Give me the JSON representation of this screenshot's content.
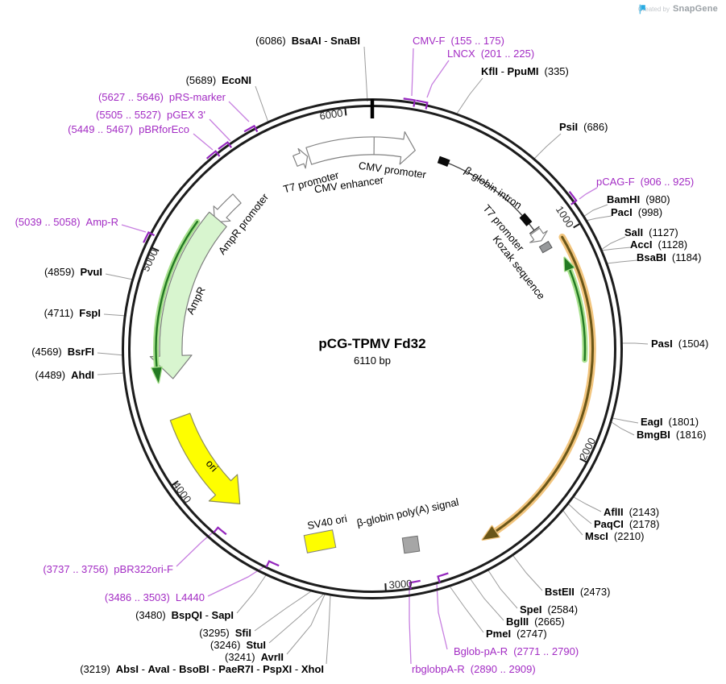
{
  "credit": {
    "prefix": "Created by",
    "brand": "SnapGene"
  },
  "plasmid": {
    "name": "pCG-TPMV Fd32",
    "size": "6110 bp",
    "length_bp": 6110
  },
  "separator": " - ",
  "ticks": [
    "1000",
    "2000",
    "3000",
    "4000",
    "5000",
    "6000"
  ],
  "colors": {
    "primer_text": "#a32cc4",
    "primer_leader": "#c77fe0",
    "primer_mark": "#9426bd",
    "ampr_fill": "#d8f5cf",
    "ori_fill": "#fefe00",
    "gene_halo": "#f2c57e",
    "gene_core": "#6a5618",
    "orf_halo": "#a8e08e",
    "orf_core": "#237a23",
    "polya_fill": "#a6a6a6",
    "kozak_fill": "#97999b",
    "snapgene_blue": "#29abe2"
  },
  "features": {
    "t7_promoter_a": {
      "label": "T7 promoter"
    },
    "cmv_enhancer": {
      "label": "CMV enhancer"
    },
    "cmv_promoter": {
      "label": "CMV promoter"
    },
    "bglobin_intron": {
      "label": "β-globin intron"
    },
    "t7_promoter_b": {
      "label": "T7 promoter"
    },
    "kozak": {
      "label": "Kozak sequence"
    },
    "gene_arc": {
      "label": ""
    },
    "ampr_promoter": {
      "label": "AmpR promoter"
    },
    "ampr": {
      "label": "AmpR"
    },
    "ori": {
      "label": "ori"
    },
    "sv40_ori": {
      "label": "SV40 ori"
    },
    "bglobin_polya": {
      "label": "β-globin poly(A) signal"
    }
  },
  "sites": [
    {
      "names": [
        "BsaAI",
        "SnaBI"
      ],
      "pos": "(6086)",
      "primer": false
    },
    {
      "names": [
        "EcoNI"
      ],
      "pos": "(5689)",
      "primer": false
    },
    {
      "names": [
        "pRS-marker"
      ],
      "pos": "(5627 .. 5646)",
      "primer": true
    },
    {
      "names": [
        "pGEX 3'"
      ],
      "pos": "(5505 .. 5527)",
      "primer": true
    },
    {
      "names": [
        "pBRforEco"
      ],
      "pos": "(5449 .. 5467)",
      "primer": true
    },
    {
      "names": [
        "Amp-R"
      ],
      "pos": "(5039 .. 5058)",
      "primer": true
    },
    {
      "names": [
        "PvuI"
      ],
      "pos": "(4859)",
      "primer": false
    },
    {
      "names": [
        "FspI"
      ],
      "pos": "(4711)",
      "primer": false
    },
    {
      "names": [
        "BsrFI"
      ],
      "pos": "(4569)",
      "primer": false
    },
    {
      "names": [
        "AhdI"
      ],
      "pos": "(4489)",
      "primer": false
    },
    {
      "names": [
        "CMV-F"
      ],
      "pos": "(155 .. 175)",
      "primer": true
    },
    {
      "names": [
        "LNCX"
      ],
      "pos": "(201 .. 225)",
      "primer": true
    },
    {
      "names": [
        "KflI",
        "PpuMI"
      ],
      "pos": "(335)",
      "primer": false
    },
    {
      "names": [
        "PsiI"
      ],
      "pos": "(686)",
      "primer": false
    },
    {
      "names": [
        "pCAG-F"
      ],
      "pos": "(906 .. 925)",
      "primer": true
    },
    {
      "names": [
        "BamHI"
      ],
      "pos": "(980)",
      "primer": false
    },
    {
      "names": [
        "PacI"
      ],
      "pos": "(998)",
      "primer": false
    },
    {
      "names": [
        "SalI"
      ],
      "pos": "(1127)",
      "primer": false
    },
    {
      "names": [
        "AccI"
      ],
      "pos": "(1128)",
      "primer": false
    },
    {
      "names": [
        "BsaBI"
      ],
      "pos": "(1184)",
      "primer": false
    },
    {
      "names": [
        "PasI"
      ],
      "pos": "(1504)",
      "primer": false
    },
    {
      "names": [
        "EagI"
      ],
      "pos": "(1801)",
      "primer": false
    },
    {
      "names": [
        "BmgBI"
      ],
      "pos": "(1816)",
      "primer": false
    },
    {
      "names": [
        "AflII"
      ],
      "pos": "(2143)",
      "primer": false
    },
    {
      "names": [
        "PaqCI"
      ],
      "pos": "(2178)",
      "primer": false
    },
    {
      "names": [
        "MscI"
      ],
      "pos": "(2210)",
      "primer": false
    },
    {
      "names": [
        "BstEII"
      ],
      "pos": "(2473)",
      "primer": false
    },
    {
      "names": [
        "SpeI"
      ],
      "pos": "(2584)",
      "primer": false
    },
    {
      "names": [
        "BglII"
      ],
      "pos": "(2665)",
      "primer": false
    },
    {
      "names": [
        "PmeI"
      ],
      "pos": "(2747)",
      "primer": false
    },
    {
      "names": [
        "Bglob-pA-R"
      ],
      "pos": "(2771 .. 2790)",
      "primer": true
    },
    {
      "names": [
        "rbglobpA-R"
      ],
      "pos": "(2890 .. 2909)",
      "primer": true
    },
    {
      "names": [
        "pBR322ori-F"
      ],
      "pos": "(3737 .. 3756)",
      "primer": true
    },
    {
      "names": [
        "L4440"
      ],
      "pos": "(3486 .. 3503)",
      "primer": true
    },
    {
      "names": [
        "BspQI",
        "SapI"
      ],
      "pos": "(3480)",
      "primer": false
    },
    {
      "names": [
        "SfiI"
      ],
      "pos": "(3295)",
      "primer": false
    },
    {
      "names": [
        "StuI"
      ],
      "pos": "(3246)",
      "primer": false
    },
    {
      "names": [
        "AvrII"
      ],
      "pos": "(3241)",
      "primer": false
    },
    {
      "names": [
        "AbsI",
        "AvaI",
        "BsoBI",
        "PaeR7I",
        "PspXI",
        "XhoI"
      ],
      "pos": "(3219)",
      "primer": false
    }
  ]
}
